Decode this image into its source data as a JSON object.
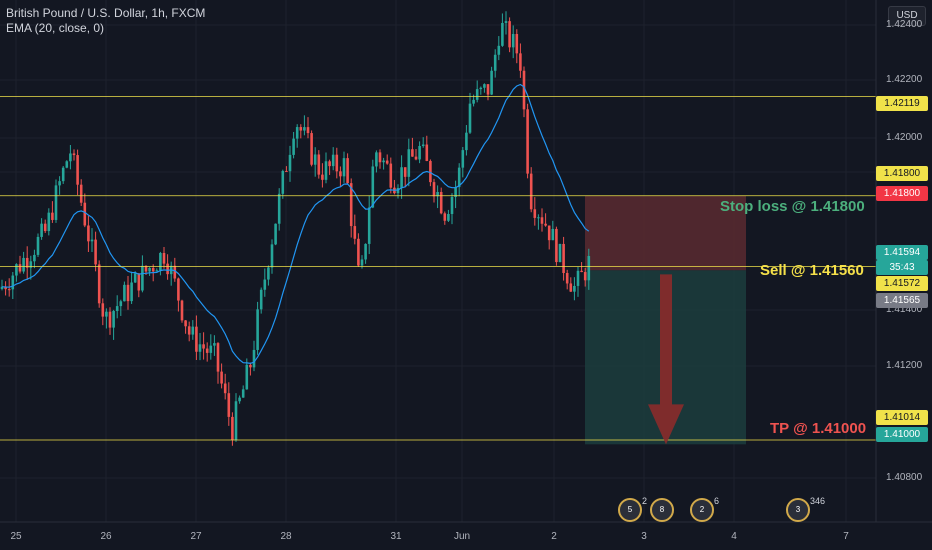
{
  "legend": {
    "symbol": "British Pound / U.S. Dollar, 1h, FXCM",
    "indicator": "EMA (20, close, 0)"
  },
  "currency": "USD",
  "y_axis_ticks": [
    "1.42400",
    "1.42200",
    "1.42000",
    "1.41800",
    "1.41400",
    "1.41200",
    "1.40800"
  ],
  "x_axis_ticks": [
    "25",
    "26",
    "27",
    "28",
    "31",
    "Jun",
    "2",
    "3",
    "4",
    "7"
  ],
  "price_tags": {
    "level_1": "1.42119",
    "stop_level": "1.41800",
    "stop_marker": "1.41800",
    "current_price": "1.41594",
    "countdown": "35:43",
    "sell_level": "1.41572",
    "last_level": "1.41565",
    "tp_level": "1.41014",
    "tp_marker": "1.41000"
  },
  "annotations": {
    "stop_loss": "Stop loss @ 1.41800",
    "sell": "Sell @ 1.41560",
    "tp": "TP @ 1.41000"
  },
  "events": [
    {
      "label": "5",
      "count": "2"
    },
    {
      "label": "8",
      "count": ""
    },
    {
      "label": "2",
      "count": "6"
    },
    {
      "label": "3",
      "count": "346"
    }
  ],
  "colors": {
    "bull": "#26a69a",
    "bear": "#ef5350",
    "ema": "#2196f3",
    "hline": "#f0e24a",
    "stop_zone": "#5a2a30",
    "target_zone": "#1c3d3d",
    "arrow": "#8b2b2b"
  },
  "chart_data": {
    "type": "candlestick",
    "ylim": [
      1.4075,
      1.4243
    ],
    "horizontal_levels": [
      1.42119,
      1.418,
      1.41572,
      1.41014
    ],
    "position": {
      "entry": 1.4156,
      "stop": 1.418,
      "target": 1.41
    }
  }
}
